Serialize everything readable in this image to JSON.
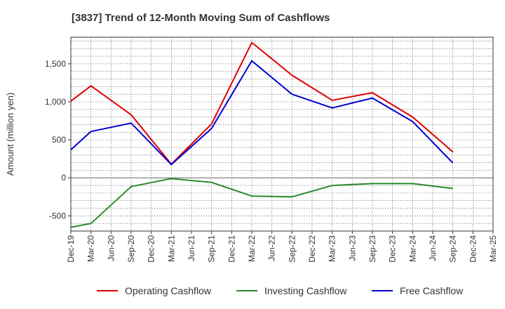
{
  "chart_data": {
    "type": "line",
    "title": "[3837]  Trend of 12-Month Moving Sum of Cashflows",
    "ylabel": "Amount (million yen)",
    "xlabel": "",
    "ylim": [
      -700,
      1850
    ],
    "yticks": [
      -500,
      0,
      500,
      1000,
      1500
    ],
    "ytick_labels": [
      "-500",
      "0",
      "500",
      "1,000",
      "1,500"
    ],
    "categories": [
      "Dec-19",
      "Mar-20",
      "Jun-20",
      "Sep-20",
      "Dec-20",
      "Mar-21",
      "Jun-21",
      "Sep-21",
      "Dec-21",
      "Mar-22",
      "Jun-22",
      "Sep-22",
      "Dec-22",
      "Mar-23",
      "Jun-23",
      "Sep-23",
      "Dec-23",
      "Mar-24",
      "Jun-24",
      "Sep-24",
      "Dec-24",
      "Mar-25"
    ],
    "series": [
      {
        "name": "Operating Cashflow",
        "color": "#e00000",
        "x": [
          0,
          1,
          3,
          5,
          7,
          9,
          11,
          13,
          15,
          17,
          19
        ],
        "values": [
          1010,
          1210,
          830,
          180,
          710,
          1780,
          1350,
          1020,
          1120,
          800,
          340
        ]
      },
      {
        "name": "Investing Cashflow",
        "color": "#2a8a2a",
        "x": [
          0,
          1,
          3,
          5,
          7,
          9,
          11,
          13,
          15,
          17,
          19
        ],
        "values": [
          -650,
          -600,
          -115,
          -10,
          -60,
          -240,
          -250,
          -100,
          -75,
          -75,
          -140
        ]
      },
      {
        "name": "Free Cashflow",
        "color": "#0000d0",
        "x": [
          0,
          1,
          3,
          5,
          7,
          9,
          11,
          13,
          15,
          17,
          19
        ],
        "values": [
          370,
          610,
          720,
          175,
          650,
          1540,
          1100,
          920,
          1050,
          740,
          195
        ]
      }
    ],
    "grid": true,
    "legend": "bottom"
  }
}
